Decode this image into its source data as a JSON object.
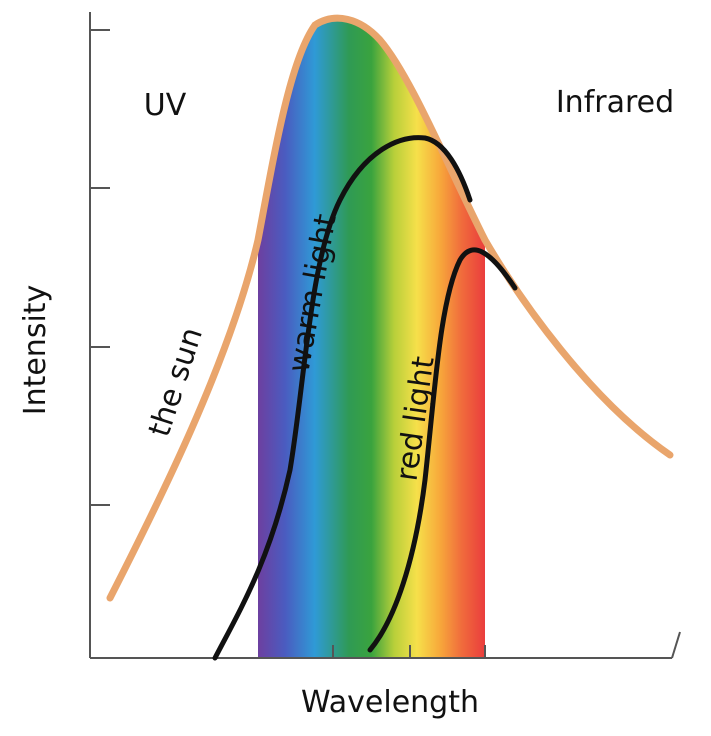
{
  "axes": {
    "y_label": "Intensity",
    "x_label": "Wavelength"
  },
  "regions": {
    "left": "UV",
    "right": "Infrared"
  },
  "curves": {
    "sun": "the sun",
    "warm": "warm light",
    "red": "red light"
  }
}
